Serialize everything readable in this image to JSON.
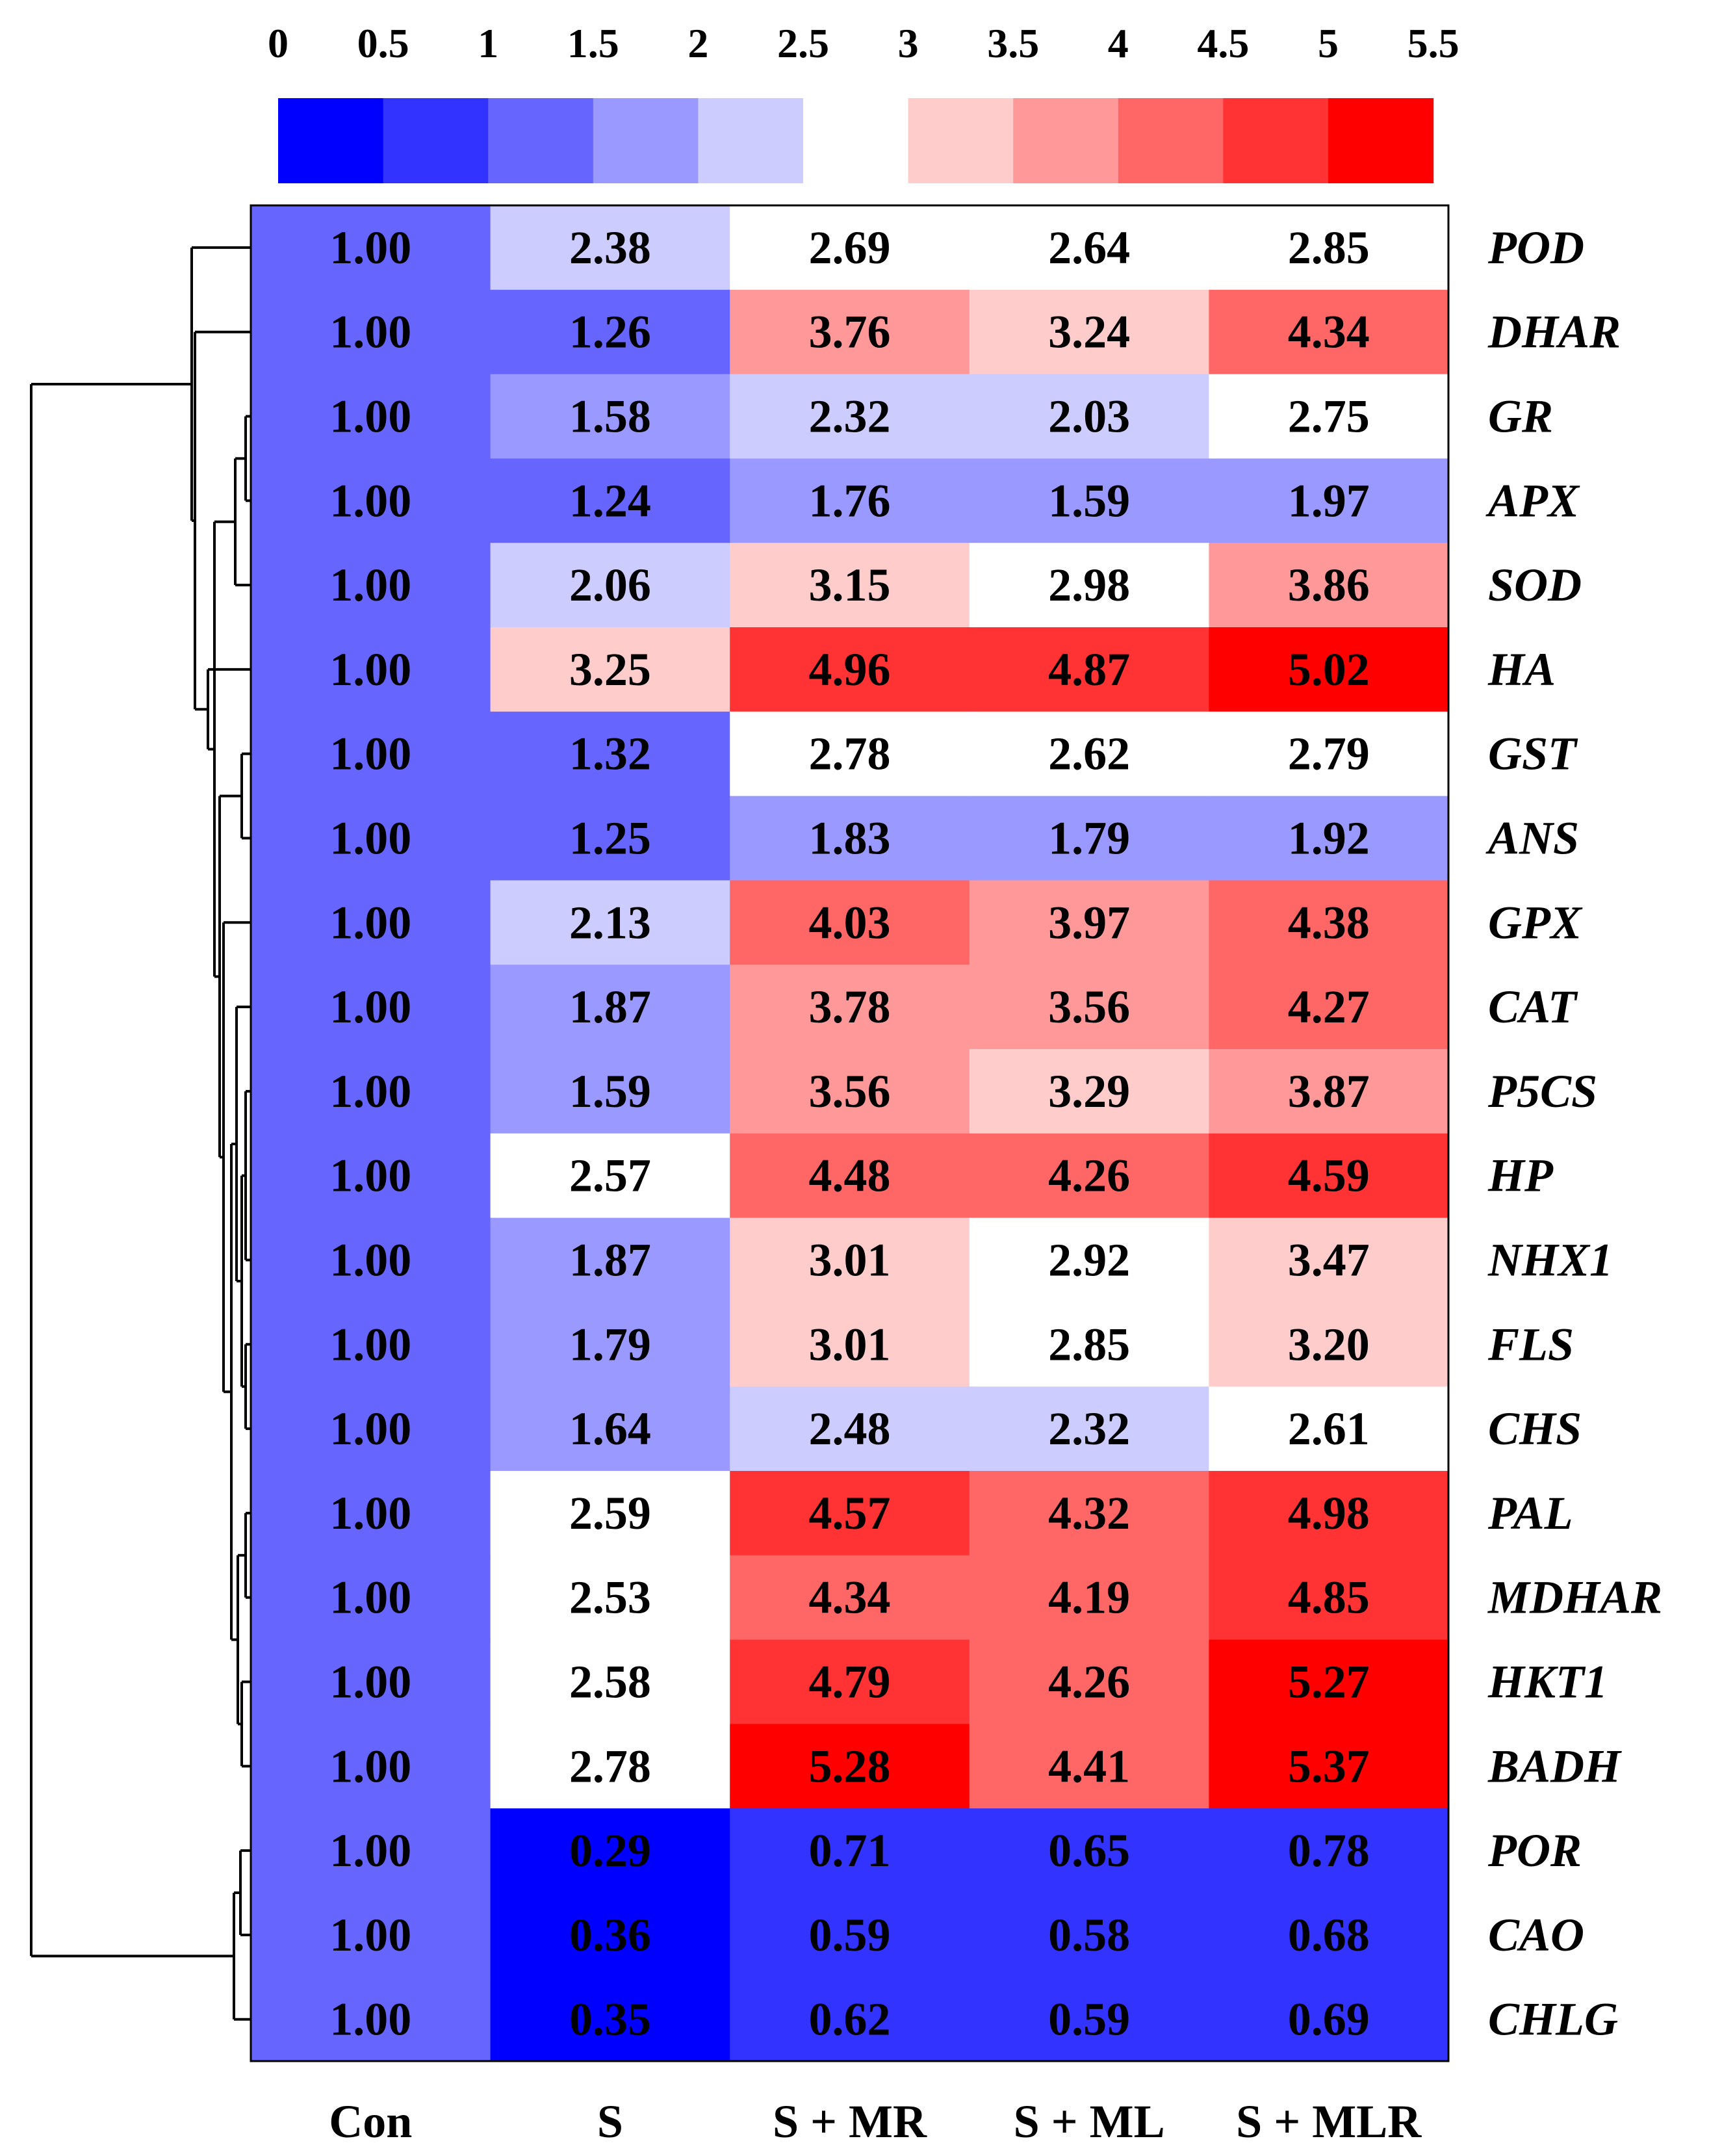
{
  "chart_data": {
    "type": "heatmap",
    "title": "",
    "xlabel": "",
    "ylabel": "",
    "columns": [
      "Con",
      "S",
      "S + MR",
      "S + ML",
      "S + MLR"
    ],
    "rows": [
      "POD",
      "DHAR",
      "GR",
      "APX",
      "SOD",
      "HA",
      "GST",
      "ANS",
      "GPX",
      "CAT",
      "P5CS",
      "HP",
      "NHX1",
      "FLS",
      "CHS",
      "PAL",
      "MDHAR",
      "HKT1",
      "BADH",
      "POR",
      "CAO",
      "CHLG"
    ],
    "values": [
      [
        "1.00",
        "2.38",
        "2.69",
        "2.64",
        "2.85"
      ],
      [
        "1.00",
        "1.26",
        "3.76",
        "3.24",
        "4.34"
      ],
      [
        "1.00",
        "1.58",
        "2.32",
        "2.03",
        "2.75"
      ],
      [
        "1.00",
        "1.24",
        "1.76",
        "1.59",
        "1.97"
      ],
      [
        "1.00",
        "2.06",
        "3.15",
        "2.98",
        "3.86"
      ],
      [
        "1.00",
        "3.25",
        "4.96",
        "4.87",
        "5.02"
      ],
      [
        "1.00",
        "1.32",
        "2.78",
        "2.62",
        "2.79"
      ],
      [
        "1.00",
        "1.25",
        "1.83",
        "1.79",
        "1.92"
      ],
      [
        "1.00",
        "2.13",
        "4.03",
        "3.97",
        "4.38"
      ],
      [
        "1.00",
        "1.87",
        "3.78",
        "3.56",
        "4.27"
      ],
      [
        "1.00",
        "1.59",
        "3.56",
        "3.29",
        "3.87"
      ],
      [
        "1.00",
        "2.57",
        "4.48",
        "4.26",
        "4.59"
      ],
      [
        "1.00",
        "1.87",
        "3.01",
        "2.92",
        "3.47"
      ],
      [
        "1.00",
        "1.79",
        "3.01",
        "2.85",
        "3.20"
      ],
      [
        "1.00",
        "1.64",
        "2.48",
        "2.32",
        "2.61"
      ],
      [
        "1.00",
        "2.59",
        "4.57",
        "4.32",
        "4.98"
      ],
      [
        "1.00",
        "2.53",
        "4.34",
        "4.19",
        "4.85"
      ],
      [
        "1.00",
        "2.58",
        "4.79",
        "4.26",
        "5.27"
      ],
      [
        "1.00",
        "2.78",
        "5.28",
        "4.41",
        "5.37"
      ],
      [
        "1.00",
        "0.29",
        "0.71",
        "0.65",
        "0.78"
      ],
      [
        "1.00",
        "0.36",
        "0.59",
        "0.58",
        "0.68"
      ],
      [
        "1.00",
        "0.35",
        "0.62",
        "0.59",
        "0.69"
      ]
    ],
    "color_scale": {
      "tick_labels": [
        "0",
        "0.5",
        "1",
        "1.5",
        "2",
        "2.5",
        "3",
        "3.5",
        "4",
        "4.5",
        "5",
        "5.5"
      ],
      "bins": [
        {
          "min": 0,
          "max": 0.5,
          "color": "#0000ff"
        },
        {
          "min": 0.5,
          "max": 1,
          "color": "#3333ff"
        },
        {
          "min": 1,
          "max": 1.5,
          "color": "#6666ff"
        },
        {
          "min": 1.5,
          "max": 2,
          "color": "#9999ff"
        },
        {
          "min": 2,
          "max": 2.5,
          "color": "#ccccff"
        },
        {
          "min": 2.5,
          "max": 3,
          "color": "#ffffff"
        },
        {
          "min": 3,
          "max": 3.5,
          "color": "#ffcccc"
        },
        {
          "min": 3.5,
          "max": 4,
          "color": "#ff9999"
        },
        {
          "min": 4,
          "max": 4.5,
          "color": "#ff6666"
        },
        {
          "min": 4.5,
          "max": 5,
          "color": "#ff3333"
        },
        {
          "min": 5,
          "max": 5.5,
          "color": "#ff0000"
        }
      ]
    },
    "dendrogram": "row clustering tree on left",
    "grid": false,
    "legend_position": "top"
  }
}
